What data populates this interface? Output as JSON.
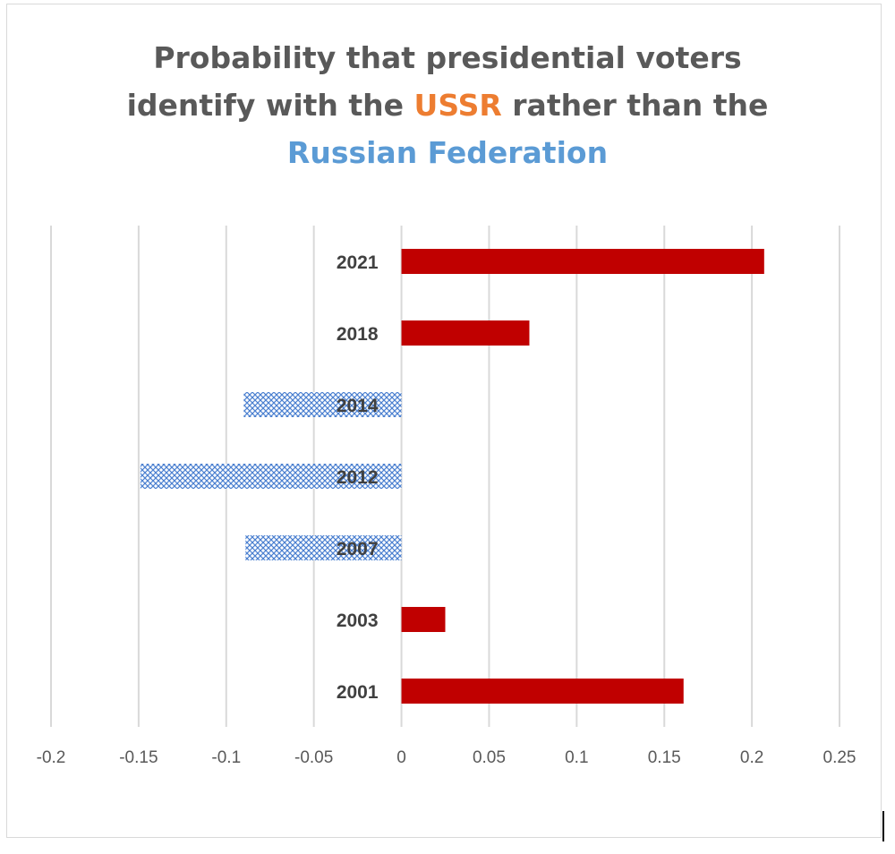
{
  "chart_data": {
    "type": "bar",
    "orientation": "horizontal",
    "title": {
      "line1": "Probability that presidential voters",
      "line2_pre": "identify with the ",
      "line2_highlight": "USSR",
      "line2_post": " rather than the",
      "line3_highlight": "Russian Federation"
    },
    "title_colors": {
      "text": "#595959",
      "USSR": "#ED7D31",
      "Russian Federation": "#5B9BD5"
    },
    "categories": [
      "2021",
      "2018",
      "2014",
      "2012",
      "2007",
      "2003",
      "2001"
    ],
    "values": [
      0.207,
      0.073,
      -0.09,
      -0.149,
      -0.089,
      0.025,
      0.161
    ],
    "colors": {
      "positive": "#C00000",
      "negative_pattern": "#4472C4 crosshatch on white"
    },
    "xlim": [
      -0.2,
      0.25
    ],
    "x_ticks": [
      "-0.2",
      "-0.15",
      "-0.1",
      "-0.05",
      "0",
      "0.05",
      "0.1",
      "0.15",
      "0.2",
      "0.25"
    ],
    "xlabel": "",
    "ylabel": "",
    "grid": "vertical",
    "legend": "none"
  }
}
